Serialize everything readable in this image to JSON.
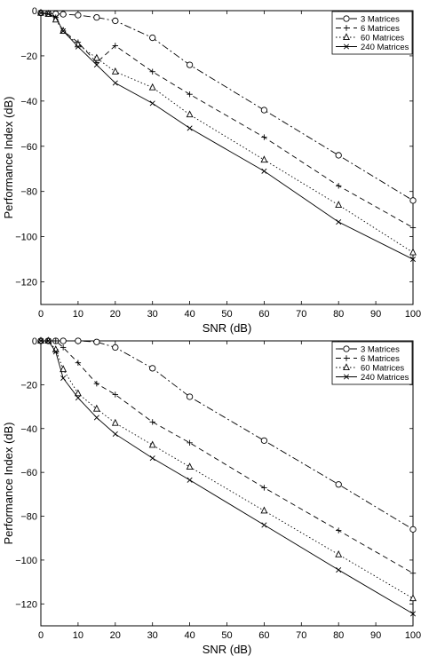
{
  "chart_data": [
    {
      "type": "line",
      "title": "",
      "xlabel": "SNR (dB)",
      "ylabel": "Performance Index (dB)",
      "xlim": [
        0,
        100
      ],
      "ylim": [
        -130,
        0
      ],
      "xticks": [
        0,
        10,
        20,
        30,
        40,
        50,
        60,
        70,
        80,
        90,
        100
      ],
      "yticks": [
        0,
        -20,
        -40,
        -60,
        -80,
        -100,
        -120
      ],
      "xtick_labels": [
        "0",
        "10",
        "20",
        "30",
        "40",
        "50",
        "60",
        "70",
        "80",
        "90",
        "100"
      ],
      "ytick_labels": [
        "0",
        "−20",
        "−40",
        "−60",
        "−80",
        "−100",
        "−120"
      ],
      "grid": false,
      "legend": "top-right",
      "series": [
        {
          "name": "3 Matrices",
          "line": "dashdot",
          "marker": "circle",
          "x": [
            0,
            2,
            4,
            6,
            10,
            15,
            20,
            30,
            40,
            60,
            80,
            100
          ],
          "y": [
            -1,
            -1.2,
            -1.4,
            -1.6,
            -2,
            -3,
            -4.5,
            -12,
            -24,
            -44,
            -64,
            -84
          ]
        },
        {
          "name": "6 Matrices",
          "line": "dashed",
          "marker": "plus",
          "x": [
            0,
            2,
            4,
            6,
            10,
            15,
            20,
            30,
            40,
            60,
            80,
            100
          ],
          "y": [
            -1,
            -1.5,
            -3,
            -9,
            -14,
            -23,
            -15.5,
            -27,
            -37,
            -56,
            -77.5,
            -96
          ]
        },
        {
          "name": "60 Matrices",
          "line": "dotted",
          "marker": "triangle",
          "x": [
            0,
            2,
            4,
            6,
            10,
            15,
            20,
            30,
            40,
            60,
            80,
            100
          ],
          "y": [
            -1,
            -1.5,
            -4,
            -9,
            -15,
            -21,
            -27,
            -34,
            -46,
            -66,
            -86,
            -107
          ]
        },
        {
          "name": "240 Matrices",
          "line": "solid",
          "marker": "x",
          "x": [
            0,
            2,
            4,
            6,
            10,
            15,
            20,
            30,
            40,
            60,
            80,
            100
          ],
          "y": [
            -1,
            -1.5,
            -3,
            -9,
            -16,
            -24,
            -32,
            -41,
            -52,
            -71,
            -93.5,
            -110
          ]
        }
      ]
    },
    {
      "type": "line",
      "title": "",
      "xlabel": "SNR (dB)",
      "ylabel": "Performance Index (dB)",
      "xlim": [
        0,
        100
      ],
      "ylim": [
        -130,
        0
      ],
      "xticks": [
        0,
        10,
        20,
        30,
        40,
        50,
        60,
        70,
        80,
        90,
        100
      ],
      "yticks": [
        0,
        -20,
        -40,
        -60,
        -80,
        -100,
        -120
      ],
      "xtick_labels": [
        "0",
        "10",
        "20",
        "30",
        "40",
        "50",
        "60",
        "70",
        "80",
        "90",
        "100"
      ],
      "ytick_labels": [
        "0",
        "−20",
        "−40",
        "−60",
        "−80",
        "−100",
        "−120"
      ],
      "grid": false,
      "legend": "top-right",
      "series": [
        {
          "name": "3 Matrices",
          "line": "dashdot",
          "marker": "circle",
          "x": [
            0,
            2,
            4,
            6,
            10,
            15,
            20,
            30,
            40,
            60,
            80,
            100
          ],
          "y": [
            0,
            0,
            0,
            0,
            0,
            -0.5,
            -3,
            -12.5,
            -25.5,
            -45.5,
            -65.5,
            -86
          ]
        },
        {
          "name": "6 Matrices",
          "line": "dashed",
          "marker": "plus",
          "x": [
            0,
            2,
            4,
            6,
            10,
            15,
            20,
            30,
            40,
            60,
            80,
            100
          ],
          "y": [
            0,
            0,
            0,
            -3,
            -10,
            -19.5,
            -24.5,
            -37,
            -46.5,
            -67,
            -86.5,
            -106
          ]
        },
        {
          "name": "60 Matrices",
          "line": "dotted",
          "marker": "triangle",
          "x": [
            0,
            2,
            4,
            6,
            10,
            15,
            20,
            30,
            40,
            60,
            80,
            100
          ],
          "y": [
            0,
            0,
            -4,
            -13,
            -24,
            -31,
            -37.5,
            -47.5,
            -57.5,
            -77.5,
            -97.5,
            -117.5
          ]
        },
        {
          "name": "240 Matrices",
          "line": "solid",
          "marker": "x",
          "x": [
            0,
            2,
            4,
            6,
            10,
            15,
            20,
            30,
            40,
            60,
            80,
            100
          ],
          "y": [
            0,
            0,
            -5,
            -17,
            -26,
            -35,
            -42.5,
            -53.5,
            -63.5,
            -84,
            -104.5,
            -124.5
          ]
        }
      ]
    }
  ]
}
